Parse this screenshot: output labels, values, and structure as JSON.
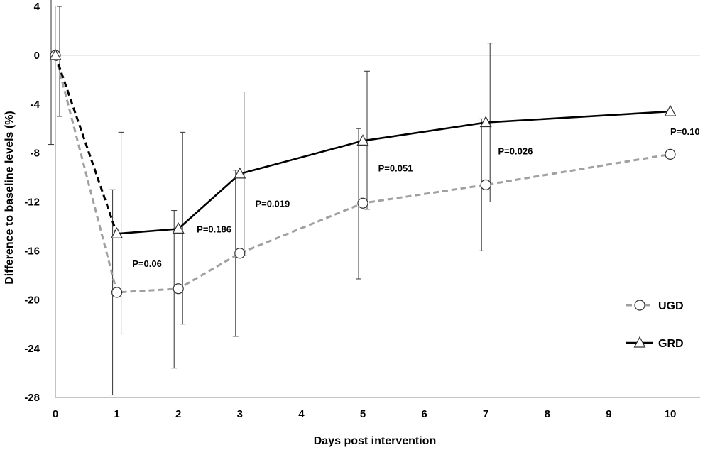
{
  "chart_data": {
    "type": "line",
    "title": "",
    "xlabel": "Days post intervention",
    "ylabel": "Difference to baseline levels (%)",
    "xlim": [
      0,
      10
    ],
    "ylim": [
      -28,
      4
    ],
    "x_ticks": [
      "0",
      "1",
      "2",
      "3",
      "4",
      "5",
      "6",
      "7",
      "8",
      "9",
      "10"
    ],
    "y_ticks": [
      "4",
      "0",
      "-4",
      "-8",
      "-12",
      "-16",
      "-20",
      "-24",
      "-28"
    ],
    "zero_reference_line": true,
    "legend_position": "right",
    "series": [
      {
        "name": "UGD",
        "marker": "circle",
        "line_style": "dashed",
        "color": "#a0a0a0",
        "points": [
          {
            "x": 0,
            "y": 0,
            "err_low": -7.3,
            "err_high": 7.3
          },
          {
            "x": 1,
            "y": -19.4,
            "err_low": -27.8,
            "err_high": -11.0
          },
          {
            "x": 2,
            "y": -19.1,
            "err_low": -25.6,
            "err_high": -12.7
          },
          {
            "x": 3,
            "y": -16.2,
            "err_low": -23.0,
            "err_high": -9.4
          },
          {
            "x": 5,
            "y": -12.1,
            "err_low": -18.3,
            "err_high": -6.0
          },
          {
            "x": 7,
            "y": -10.6,
            "err_low": -16.0,
            "err_high": -5.2
          },
          {
            "x": 10,
            "y": -8.1
          }
        ]
      },
      {
        "name": "GRD",
        "marker": "triangle",
        "line_style": "solid",
        "first_segment_style": "dashed",
        "color": "#000000",
        "points": [
          {
            "x": 0,
            "y": 0,
            "err_low": -5.0,
            "err_high": 4.0
          },
          {
            "x": 1,
            "y": -14.6,
            "err_low": -22.8,
            "err_high": -6.3
          },
          {
            "x": 2,
            "y": -14.2,
            "err_low": -22.0,
            "err_high": -6.3
          },
          {
            "x": 3,
            "y": -9.7,
            "err_low": -16.4,
            "err_high": -3.0
          },
          {
            "x": 5,
            "y": -7.0,
            "err_low": -12.6,
            "err_high": -1.3
          },
          {
            "x": 7,
            "y": -5.5,
            "err_low": -12.0,
            "err_high": 1.0
          },
          {
            "x": 10,
            "y": -4.6
          }
        ]
      }
    ],
    "annotations": [
      {
        "text": "P=0.06",
        "x": 1.25,
        "y": -17.3
      },
      {
        "text": "P=0.186",
        "x": 2.3,
        "y": -14.5
      },
      {
        "text": "P=0.019",
        "x": 3.25,
        "y": -12.4
      },
      {
        "text": "P=0.051",
        "x": 5.25,
        "y": -9.5
      },
      {
        "text": "P=0.026",
        "x": 7.2,
        "y": -8.1
      },
      {
        "text": "P=0.10",
        "x": 10.0,
        "y": -6.5
      }
    ]
  }
}
